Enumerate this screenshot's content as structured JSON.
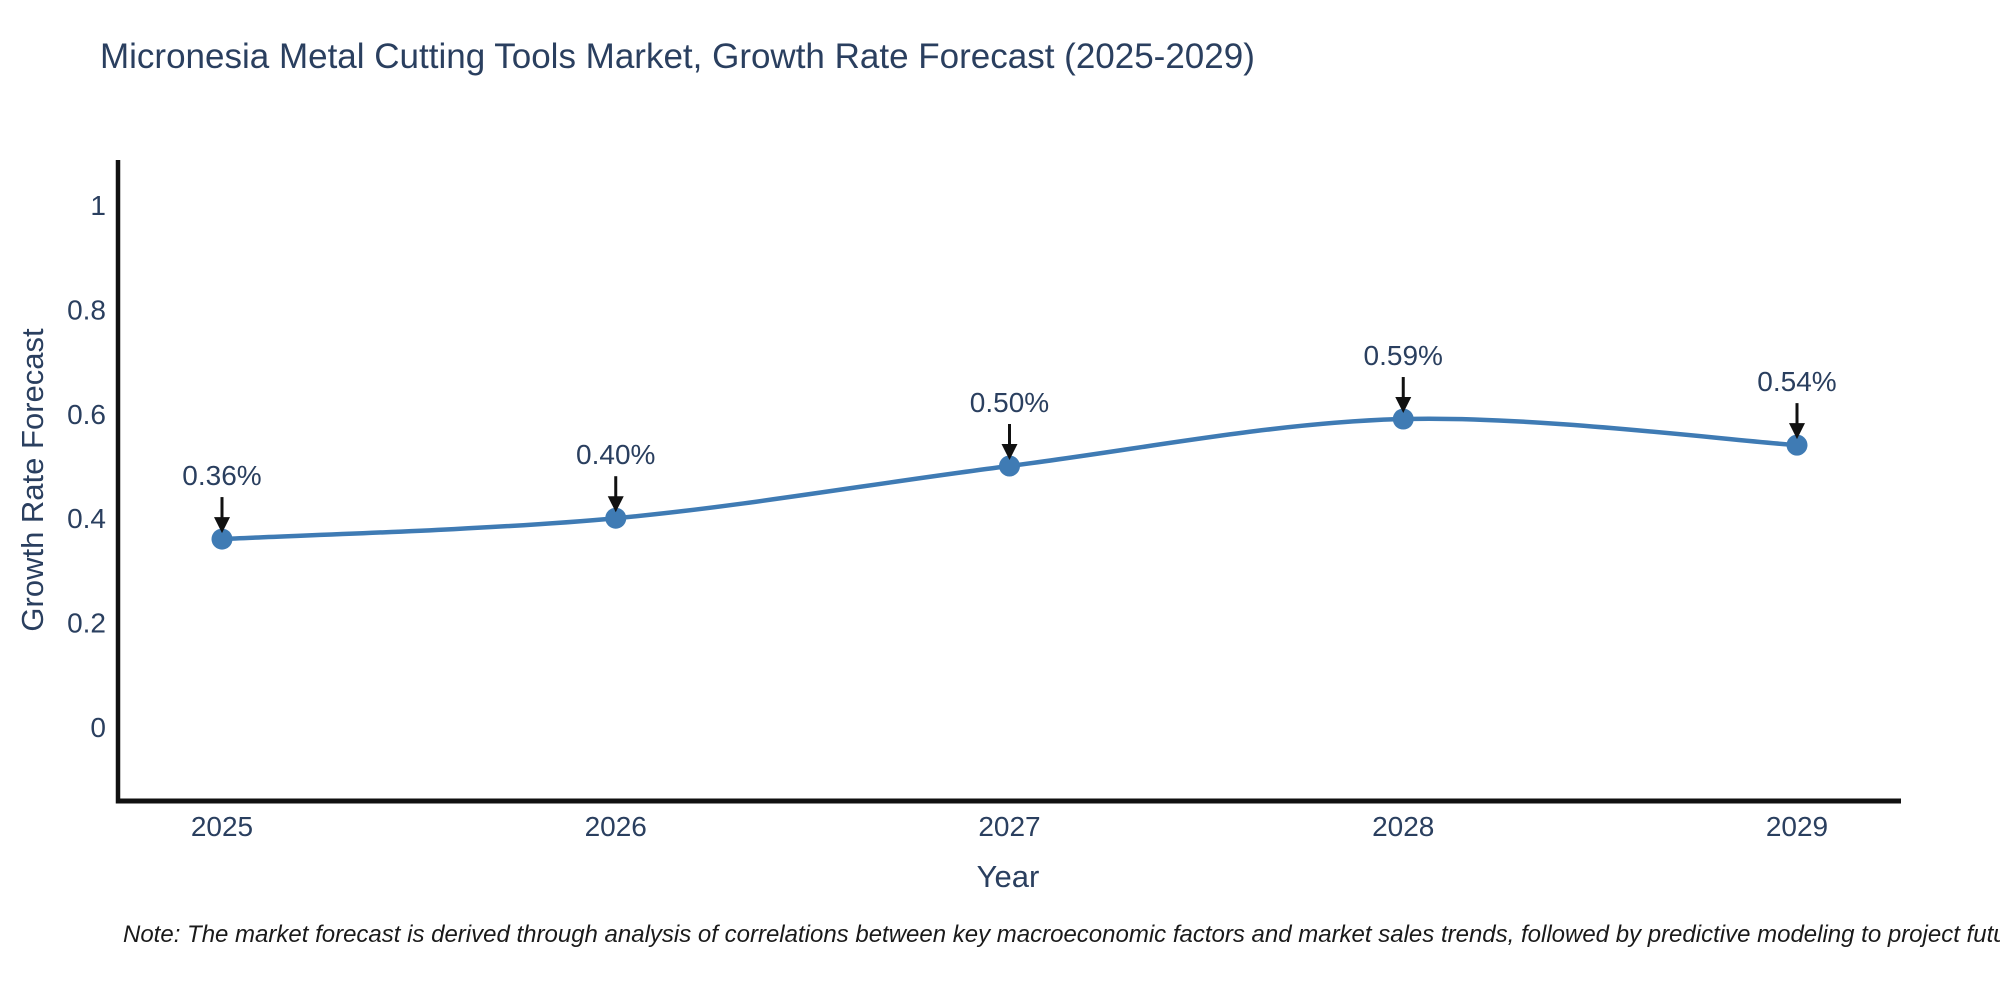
{
  "chart": {
    "title": "Micronesia Metal Cutting Tools Market, Growth Rate Forecast (2025-2029)",
    "xlabel": "Year",
    "ylabel": "Growth Rate Forecast",
    "note": "Note: The market forecast is derived through analysis of correlations between key macroeconomic factors and market sales trends, followed by predictive modeling to project future sales"
  },
  "chart_data": {
    "type": "line",
    "line_shape": "spline",
    "x": [
      2025,
      2026,
      2027,
      2028,
      2029
    ],
    "values": [
      0.36,
      0.4,
      0.5,
      0.59,
      0.54
    ],
    "point_labels": [
      "0.36%",
      "0.40%",
      "0.50%",
      "0.59%",
      "0.54%"
    ],
    "x_tick_labels": [
      "2025",
      "2026",
      "2027",
      "2028",
      "2029"
    ],
    "y_ticks": [
      0,
      0.2,
      0.4,
      0.6,
      0.8,
      1
    ],
    "y_tick_labels": [
      "0",
      "0.2",
      "0.4",
      "0.6",
      "0.8",
      "1"
    ],
    "title": "Micronesia Metal Cutting Tools Market, Growth Rate Forecast (2025-2029)",
    "xlabel": "Year",
    "ylabel": "Growth Rate Forecast",
    "ylim": [
      -0.15,
      1.09
    ],
    "grid": false,
    "legend": "none",
    "markers": true,
    "annotations_arrows": true,
    "colors": {
      "line": "#3f7bb4",
      "marker": "#3f7bb4",
      "axis": "#111111",
      "tick_text": "#2a3f5f",
      "annotation_text": "#2a3f5f",
      "arrow": "#111111",
      "note_text": "#1a1a1a",
      "background": "#ffffff"
    }
  }
}
